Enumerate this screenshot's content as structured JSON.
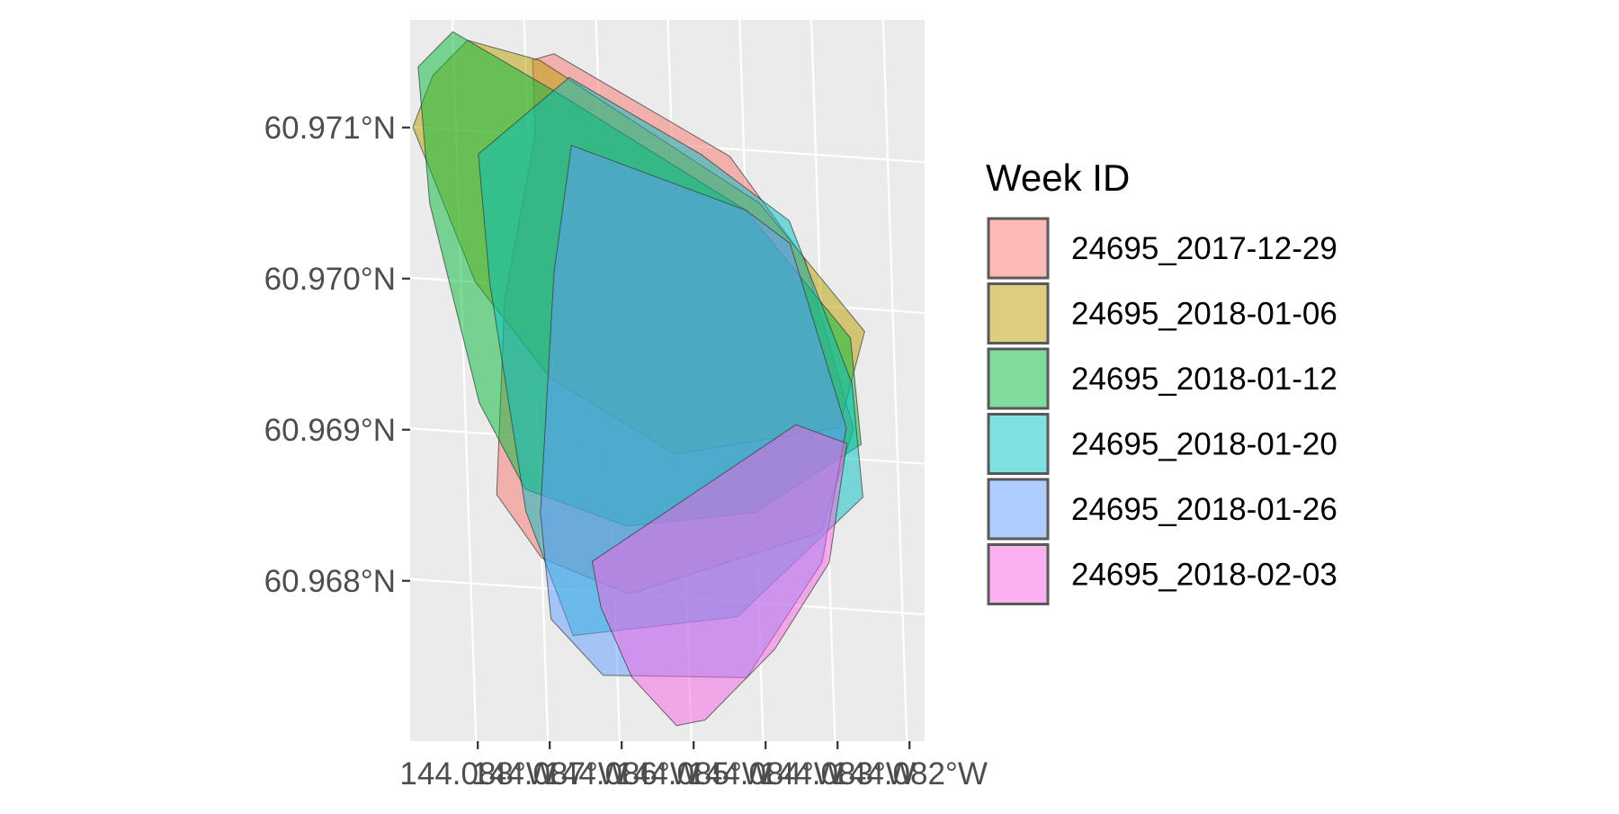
{
  "chart_data": {
    "type": "map",
    "title": "",
    "xlabel": "",
    "ylabel": "",
    "projection": "geographic, rotated graticule",
    "grid": true,
    "panel_background": "#ebebeb",
    "grid_color": "#ffffff",
    "y_ticks": [
      {
        "value": 60.971,
        "label": "60.971°N"
      },
      {
        "value": 60.97,
        "label": "60.970°N"
      },
      {
        "value": 60.969,
        "label": "60.969°N"
      },
      {
        "value": 60.968,
        "label": "60.968°N"
      }
    ],
    "x_ticks": [
      {
        "value": -144.088,
        "label": "144.088°W"
      },
      {
        "value": -144.087,
        "label": "144.087°W"
      },
      {
        "value": -144.086,
        "label": "144.086°W"
      },
      {
        "value": -144.085,
        "label": "144.085°W"
      },
      {
        "value": -144.084,
        "label": "144.084°W"
      },
      {
        "value": -144.083,
        "label": "144.083°W"
      },
      {
        "value": -144.082,
        "label": "144.082°W"
      }
    ],
    "legend": {
      "title": "Week ID",
      "position": "right"
    },
    "fill_opacity": 0.5,
    "series": [
      {
        "name": "24695_2017-12-29",
        "color": "#F8766D",
        "polygon_lonlat": [
          [
            -144.0869,
            60.9715
          ],
          [
            -144.0866,
            60.97155
          ],
          [
            -144.0842,
            60.97095
          ],
          [
            -144.0832,
            60.9703
          ],
          [
            -144.0826,
            60.9692
          ],
          [
            -144.0831,
            60.9685
          ],
          [
            -144.0858,
            60.968
          ],
          [
            -144.087,
            60.9682
          ],
          [
            -144.0876,
            60.9686
          ],
          [
            -144.0874,
            60.9699
          ],
          [
            -144.0869,
            60.971
          ]
        ]
      },
      {
        "name": "24695_2018-01-06",
        "color": "#B79F00",
        "polygon_lonlat": [
          [
            -144.0883,
            60.97135
          ],
          [
            -144.0878,
            60.9716
          ],
          [
            -144.0868,
            60.9715
          ],
          [
            -144.0838,
            60.97065
          ],
          [
            -144.0824,
            60.96985
          ],
          [
            -144.0828,
            60.9692
          ],
          [
            -144.0851,
            60.96895
          ],
          [
            -144.0868,
            60.9694
          ],
          [
            -144.0878,
            60.97
          ],
          [
            -144.0886,
            60.971
          ]
        ]
      },
      {
        "name": "24695_2018-01-12",
        "color": "#00BA38",
        "polygon_lonlat": [
          [
            -144.0885,
            60.9714
          ],
          [
            -144.088,
            60.97165
          ],
          [
            -144.0866,
            60.9713
          ],
          [
            -144.084,
            60.9706
          ],
          [
            -144.0826,
            60.9698
          ],
          [
            -144.0825,
            60.9691
          ],
          [
            -144.084,
            60.9686
          ],
          [
            -144.0858,
            60.96845
          ],
          [
            -144.0872,
            60.96865
          ],
          [
            -144.0878,
            60.9692
          ],
          [
            -144.0884,
            60.9705
          ]
        ]
      },
      {
        "name": "24695_2018-01-20",
        "color": "#00BFC4",
        "polygon_lonlat": [
          [
            -144.0877,
            60.97085
          ],
          [
            -144.0864,
            60.9714
          ],
          [
            -144.0846,
            60.97095
          ],
          [
            -144.0834,
            60.97055
          ],
          [
            -144.0826,
            60.9695
          ],
          [
            -144.0825,
            60.96875
          ],
          [
            -144.0843,
            60.9679
          ],
          [
            -144.0866,
            60.9677
          ],
          [
            -144.0872,
            60.9685
          ],
          [
            -144.0876,
            60.97
          ]
        ]
      },
      {
        "name": "24695_2018-01-26",
        "color": "#619CFF",
        "polygon_lonlat": [
          [
            -144.0864,
            60.97095
          ],
          [
            -144.084,
            60.9706
          ],
          [
            -144.0834,
            60.9704
          ],
          [
            -144.0827,
            60.9692
          ],
          [
            -144.0831,
            60.9683
          ],
          [
            -144.0842,
            60.9675
          ],
          [
            -144.0862,
            60.96745
          ],
          [
            -144.0869,
            60.9678
          ],
          [
            -144.087,
            60.9685
          ],
          [
            -144.0867,
            60.9701
          ]
        ]
      },
      {
        "name": "24695_2018-02-03",
        "color": "#F564E3",
        "polygon_lonlat": [
          [
            -144.0863,
            60.9682
          ],
          [
            -144.0834,
            60.9692
          ],
          [
            -144.0827,
            60.9691
          ],
          [
            -144.083,
            60.9683
          ],
          [
            -144.0838,
            60.9677
          ],
          [
            -144.0848,
            60.9672
          ],
          [
            -144.0852,
            60.96715
          ],
          [
            -144.0858,
            60.96745
          ],
          [
            -144.0862,
            60.9679
          ]
        ]
      }
    ]
  }
}
